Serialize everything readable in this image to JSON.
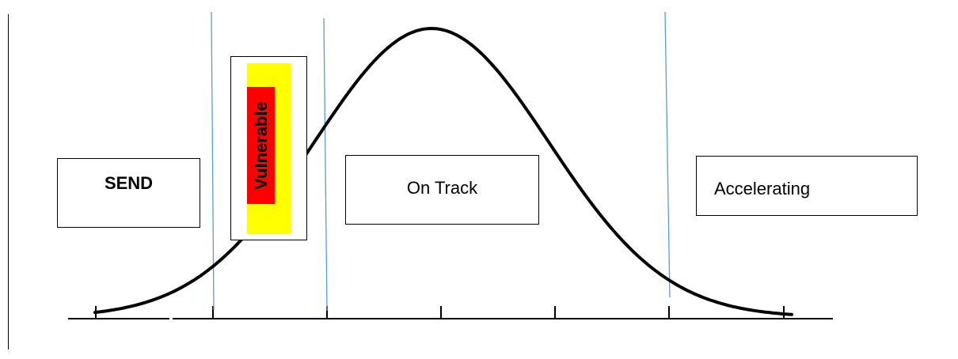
{
  "diagram": {
    "type": "bell-curve-attainment-bands",
    "bands": {
      "send": "SEND",
      "vulnerable": "Vulnerable",
      "on_track": "On Track",
      "accelerating": "Accelerating"
    },
    "colors": {
      "curve": "#000000",
      "divider_lines": "#5b9bd5",
      "vulnerable_outer": "#ffff00",
      "vulnerable_inner": "#ff0000",
      "box_border": "#000000"
    }
  }
}
